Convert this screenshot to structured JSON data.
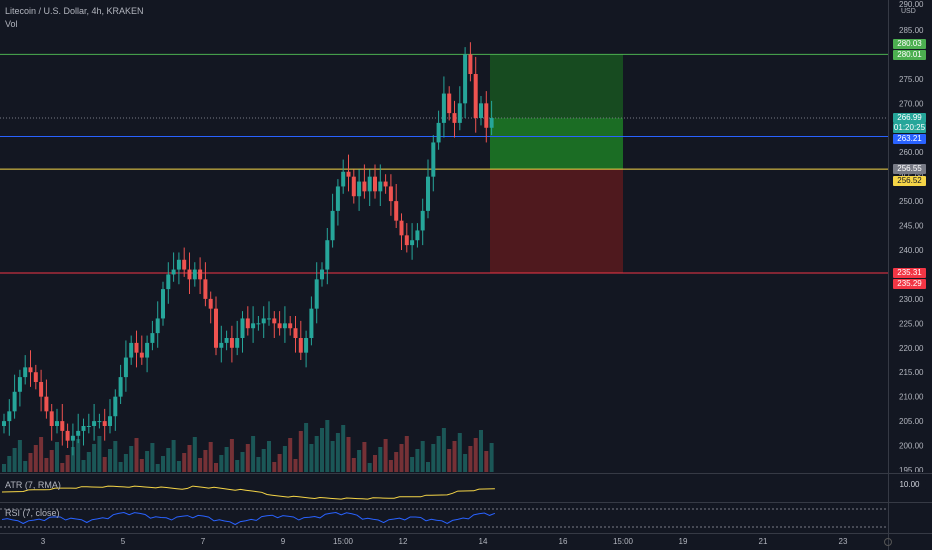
{
  "header": {
    "symbol_title": "Litecoin / U.S. Dollar, 4h, KRAKEN",
    "vol_label": "Vol",
    "currency": "USD"
  },
  "price_axis": {
    "top_partial": "290.00",
    "ticks": [
      "285.00",
      "280.00",
      "275.00",
      "270.00",
      "265.00",
      "260.00",
      "255.00",
      "250.00",
      "245.00",
      "240.00",
      "235.00",
      "230.00",
      "225.00",
      "220.00",
      "215.00",
      "210.00",
      "205.00",
      "200.00",
      "195.00"
    ]
  },
  "tags": {
    "target_top": "280.03",
    "target_bottom": "280.01",
    "last_price": "266.99",
    "countdown": "01:20:25",
    "blue_line": "263.21",
    "entry_top": "256.55",
    "entry_bottom": "256.52",
    "stop_top": "235.31",
    "stop_bottom": "235.29"
  },
  "indicators": {
    "atr_label": "ATR (7, RMA)",
    "atr_value": "10.00",
    "rsi_label": "RSI (7, close)"
  },
  "time_axis": [
    "3",
    "5",
    "7",
    "9",
    "15:00",
    "12",
    "14",
    "16",
    "15:00",
    "19",
    "21",
    "23"
  ],
  "colors": {
    "background": "#131722",
    "up": "#26a69a",
    "down": "#ef5350",
    "target_line": "#4caf50",
    "blue_line": "#2962ff",
    "entry_line": "#f5d547",
    "stop_line": "#f23645",
    "profit_zone": "#1a5e20",
    "loss_zone": "#5a1a1d"
  },
  "icons": {
    "settings": "gear-icon"
  }
}
